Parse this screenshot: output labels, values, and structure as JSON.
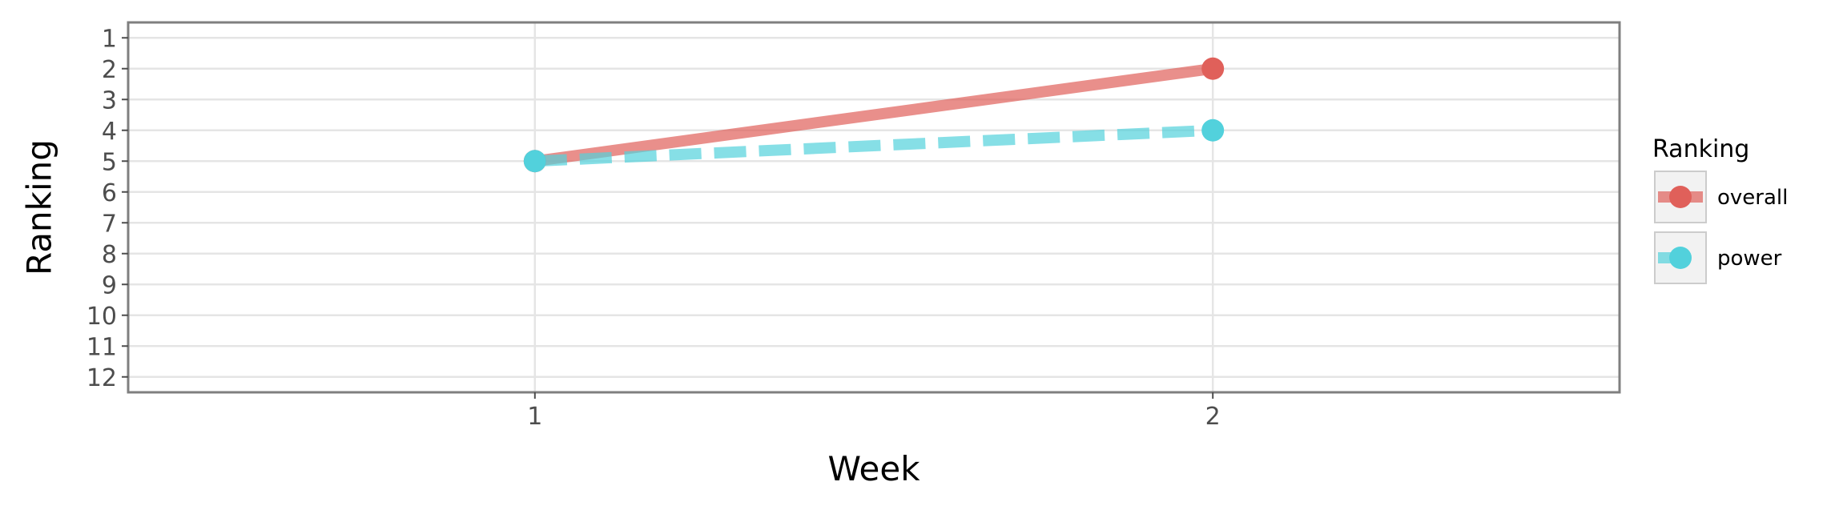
{
  "chart_data": {
    "type": "line",
    "title": "",
    "xlabel": "Week",
    "ylabel": "Ranking",
    "x": [
      1,
      2
    ],
    "x_ticks": [
      "1",
      "2"
    ],
    "xlim": [
      0.4,
      2.6
    ],
    "y_ticks": [
      "1",
      "2",
      "3",
      "4",
      "5",
      "6",
      "7",
      "8",
      "9",
      "10",
      "11",
      "12"
    ],
    "ylim": [
      12.5,
      0.5
    ],
    "y_reversed": true,
    "grid": true,
    "legend": {
      "title": "Ranking",
      "placement": "right"
    },
    "series": [
      {
        "name": "overall",
        "values": [
          5,
          2
        ],
        "color": "#E0605A",
        "line_style": "solid"
      },
      {
        "name": "power",
        "values": [
          5,
          4
        ],
        "color": "#52D1DC",
        "line_style": "dashed"
      }
    ]
  }
}
